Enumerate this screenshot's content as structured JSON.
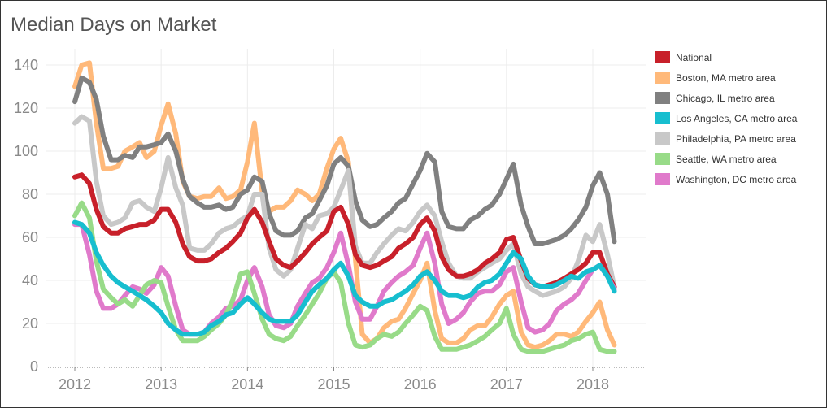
{
  "chart_data": {
    "type": "line",
    "title": "Median Days on Market",
    "xlabel": "",
    "ylabel": "",
    "xlim": [
      2011.85,
      2018.6
    ],
    "ylim": [
      0,
      145
    ],
    "x_ticks": [
      "2012",
      "2013",
      "2014",
      "2015",
      "2016",
      "2017",
      "2018"
    ],
    "y_ticks": [
      "0",
      "20",
      "40",
      "60",
      "80",
      "100",
      "120",
      "140"
    ],
    "legend_position": "right",
    "series": [
      {
        "name": "Boston, MA metro area",
        "color": "#FFB97A",
        "x": [
          2012,
          2012.08,
          2012.17,
          2012.25,
          2012.33,
          2012.42,
          2012.5,
          2012.58,
          2012.67,
          2012.75,
          2012.83,
          2012.92,
          2013,
          2013.08,
          2013.17,
          2013.25,
          2013.33,
          2013.42,
          2013.5,
          2013.58,
          2013.67,
          2013.75,
          2013.83,
          2013.92,
          2014,
          2014.08,
          2014.17,
          2014.25,
          2014.33,
          2014.42,
          2014.5,
          2014.58,
          2014.67,
          2014.75,
          2014.83,
          2014.92,
          2015,
          2015.08,
          2015.17,
          2015.25,
          2015.33,
          2015.42,
          2015.5,
          2015.58,
          2015.67,
          2015.75,
          2015.83,
          2015.92,
          2016,
          2016.08,
          2016.17,
          2016.25,
          2016.33,
          2016.42,
          2016.5,
          2016.58,
          2016.67,
          2016.75,
          2016.83,
          2016.92,
          2017,
          2017.08,
          2017.17,
          2017.25,
          2017.33,
          2017.42,
          2017.5,
          2017.58,
          2017.67,
          2017.75,
          2017.83,
          2017.92,
          2018,
          2018.08,
          2018.17,
          2018.25
        ],
        "values": [
          130,
          140,
          141,
          113,
          92,
          92,
          93,
          100,
          102,
          104,
          97,
          100,
          112,
          122,
          108,
          86,
          79,
          78,
          79,
          79,
          83,
          78,
          79,
          82,
          95,
          113,
          81,
          72,
          74,
          74,
          77,
          82,
          80,
          77,
          80,
          92,
          101,
          106,
          95,
          50,
          15,
          11,
          13,
          18,
          21,
          22,
          27,
          34,
          40,
          48,
          26,
          13,
          11,
          11,
          13,
          17,
          19,
          19,
          23,
          29,
          33,
          35,
          16,
          10,
          9,
          10,
          12,
          15,
          15,
          14,
          16,
          21,
          25,
          30,
          17,
          10
        ]
      },
      {
        "name": "Chicago, IL metro area",
        "color": "#808080",
        "x": [
          2012,
          2012.08,
          2012.17,
          2012.25,
          2012.33,
          2012.42,
          2012.5,
          2012.58,
          2012.67,
          2012.75,
          2012.83,
          2012.92,
          2013,
          2013.08,
          2013.17,
          2013.25,
          2013.33,
          2013.42,
          2013.5,
          2013.58,
          2013.67,
          2013.75,
          2013.83,
          2013.92,
          2014,
          2014.08,
          2014.17,
          2014.25,
          2014.33,
          2014.42,
          2014.5,
          2014.58,
          2014.67,
          2014.75,
          2014.83,
          2014.92,
          2015,
          2015.08,
          2015.17,
          2015.25,
          2015.33,
          2015.42,
          2015.5,
          2015.58,
          2015.67,
          2015.75,
          2015.83,
          2015.92,
          2016,
          2016.08,
          2016.17,
          2016.25,
          2016.33,
          2016.42,
          2016.5,
          2016.58,
          2016.67,
          2016.75,
          2016.83,
          2016.92,
          2017,
          2017.08,
          2017.17,
          2017.25,
          2017.33,
          2017.42,
          2017.5,
          2017.58,
          2017.67,
          2017.75,
          2017.83,
          2017.92,
          2018,
          2018.08,
          2018.17,
          2018.25
        ],
        "values": [
          123,
          134,
          132,
          124,
          107,
          96,
          96,
          98,
          97,
          102,
          102,
          103,
          104,
          108,
          100,
          87,
          79,
          76,
          74,
          74,
          75,
          73,
          74,
          80,
          82,
          88,
          86,
          71,
          63,
          61,
          61,
          63,
          69,
          71,
          77,
          84,
          94,
          97,
          93,
          77,
          68,
          65,
          66,
          69,
          72,
          76,
          78,
          85,
          91,
          99,
          95,
          72,
          65,
          64,
          64,
          68,
          70,
          73,
          75,
          80,
          87,
          94,
          75,
          65,
          57,
          57,
          58,
          59,
          61,
          64,
          68,
          74,
          84,
          90,
          80,
          58
        ]
      },
      {
        "name": "Philadelphia, PA metro area",
        "color": "#C8C8C8",
        "x": [
          2012,
          2012.08,
          2012.17,
          2012.25,
          2012.33,
          2012.42,
          2012.5,
          2012.58,
          2012.67,
          2012.75,
          2012.83,
          2012.92,
          2013,
          2013.08,
          2013.17,
          2013.25,
          2013.33,
          2013.42,
          2013.5,
          2013.58,
          2013.67,
          2013.75,
          2013.83,
          2013.92,
          2014,
          2014.08,
          2014.17,
          2014.25,
          2014.33,
          2014.42,
          2014.5,
          2014.58,
          2014.67,
          2014.75,
          2014.83,
          2014.92,
          2015,
          2015.08,
          2015.17,
          2015.25,
          2015.33,
          2015.42,
          2015.5,
          2015.58,
          2015.67,
          2015.75,
          2015.83,
          2015.92,
          2016,
          2016.08,
          2016.17,
          2016.25,
          2016.33,
          2016.42,
          2016.5,
          2016.58,
          2016.67,
          2016.75,
          2016.83,
          2016.92,
          2017,
          2017.08,
          2017.17,
          2017.25,
          2017.33,
          2017.42,
          2017.5,
          2017.58,
          2017.67,
          2017.75,
          2017.83,
          2017.92,
          2018,
          2018.08,
          2018.17,
          2018.25
        ],
        "values": [
          113,
          116,
          114,
          86,
          70,
          66,
          67,
          69,
          76,
          77,
          74,
          72,
          83,
          97,
          83,
          75,
          55,
          54,
          54,
          57,
          62,
          64,
          65,
          68,
          70,
          80,
          80,
          55,
          45,
          42,
          45,
          55,
          66,
          64,
          70,
          71,
          74,
          82,
          91,
          56,
          48,
          48,
          53,
          57,
          61,
          64,
          63,
          67,
          72,
          75,
          70,
          58,
          48,
          42,
          41,
          41,
          44,
          46,
          48,
          50,
          54,
          57,
          43,
          37,
          35,
          33,
          34,
          35,
          37,
          41,
          49,
          61,
          58,
          66,
          52,
          37
        ]
      },
      {
        "name": "National",
        "color": "#C8202A",
        "x": [
          2012,
          2012.08,
          2012.17,
          2012.25,
          2012.33,
          2012.42,
          2012.5,
          2012.58,
          2012.67,
          2012.75,
          2012.83,
          2012.92,
          2013,
          2013.08,
          2013.17,
          2013.25,
          2013.33,
          2013.42,
          2013.5,
          2013.58,
          2013.67,
          2013.75,
          2013.83,
          2013.92,
          2014,
          2014.08,
          2014.17,
          2014.25,
          2014.33,
          2014.42,
          2014.5,
          2014.58,
          2014.67,
          2014.75,
          2014.83,
          2014.92,
          2015,
          2015.08,
          2015.17,
          2015.25,
          2015.33,
          2015.42,
          2015.5,
          2015.58,
          2015.67,
          2015.75,
          2015.83,
          2015.92,
          2016,
          2016.08,
          2016.17,
          2016.25,
          2016.33,
          2016.42,
          2016.5,
          2016.58,
          2016.67,
          2016.75,
          2016.83,
          2016.92,
          2017,
          2017.08,
          2017.17,
          2017.25,
          2017.33,
          2017.42,
          2017.5,
          2017.58,
          2017.67,
          2017.75,
          2017.83,
          2017.92,
          2018,
          2018.08,
          2018.17,
          2018.25
        ],
        "values": [
          88,
          89,
          85,
          73,
          65,
          62,
          62,
          64,
          65,
          66,
          66,
          68,
          73,
          73,
          67,
          57,
          51,
          49,
          49,
          50,
          53,
          55,
          58,
          62,
          69,
          73,
          67,
          58,
          50,
          47,
          46,
          49,
          53,
          57,
          60,
          63,
          72,
          74,
          66,
          52,
          47,
          46,
          47,
          49,
          51,
          55,
          57,
          60,
          66,
          69,
          63,
          51,
          45,
          42,
          42,
          43,
          45,
          48,
          50,
          53,
          59,
          60,
          49,
          41,
          38,
          37,
          38,
          39,
          41,
          43,
          45,
          48,
          53,
          53,
          43,
          37
        ]
      },
      {
        "name": "Washington, DC metro area",
        "color": "#E07ACB",
        "x": [
          2012,
          2012.08,
          2012.17,
          2012.25,
          2012.33,
          2012.42,
          2012.5,
          2012.58,
          2012.67,
          2012.75,
          2012.83,
          2012.92,
          2013,
          2013.08,
          2013.17,
          2013.25,
          2013.33,
          2013.42,
          2013.5,
          2013.58,
          2013.67,
          2013.75,
          2013.83,
          2013.92,
          2014,
          2014.08,
          2014.17,
          2014.25,
          2014.33,
          2014.42,
          2014.5,
          2014.58,
          2014.67,
          2014.75,
          2014.83,
          2014.92,
          2015,
          2015.08,
          2015.17,
          2015.25,
          2015.33,
          2015.42,
          2015.5,
          2015.58,
          2015.67,
          2015.75,
          2015.83,
          2015.92,
          2016,
          2016.08,
          2016.17,
          2016.25,
          2016.33,
          2016.42,
          2016.5,
          2016.58,
          2016.67,
          2016.75,
          2016.83,
          2016.92,
          2017,
          2017.08,
          2017.17,
          2017.25,
          2017.33,
          2017.42,
          2017.5,
          2017.58,
          2017.67,
          2017.75,
          2017.83,
          2017.92,
          2018,
          2018.08,
          2018.17,
          2018.25
        ],
        "values": [
          66,
          66,
          52,
          35,
          27,
          27,
          29,
          33,
          37,
          36,
          34,
          38,
          46,
          42,
          28,
          17,
          15,
          15,
          16,
          20,
          23,
          27,
          28,
          31,
          40,
          46,
          37,
          24,
          19,
          18,
          20,
          28,
          34,
          39,
          41,
          46,
          53,
          62,
          47,
          30,
          22,
          22,
          28,
          35,
          39,
          42,
          44,
          47,
          55,
          62,
          48,
          29,
          20,
          22,
          25,
          30,
          34,
          35,
          35,
          38,
          44,
          46,
          30,
          18,
          16,
          17,
          20,
          26,
          29,
          31,
          34,
          40,
          45,
          47,
          42,
          36
        ]
      },
      {
        "name": "Seattle, WA metro area",
        "color": "#98DB88",
        "x": [
          2012,
          2012.08,
          2012.17,
          2012.25,
          2012.33,
          2012.42,
          2012.5,
          2012.58,
          2012.67,
          2012.75,
          2012.83,
          2012.92,
          2013,
          2013.08,
          2013.17,
          2013.25,
          2013.33,
          2013.42,
          2013.5,
          2013.58,
          2013.67,
          2013.75,
          2013.83,
          2013.92,
          2014,
          2014.08,
          2014.17,
          2014.25,
          2014.33,
          2014.42,
          2014.5,
          2014.58,
          2014.67,
          2014.75,
          2014.83,
          2014.92,
          2015,
          2015.08,
          2015.17,
          2015.25,
          2015.33,
          2015.42,
          2015.5,
          2015.58,
          2015.67,
          2015.75,
          2015.83,
          2015.92,
          2016,
          2016.08,
          2016.17,
          2016.25,
          2016.33,
          2016.42,
          2016.5,
          2016.58,
          2016.67,
          2016.75,
          2016.83,
          2016.92,
          2017,
          2017.08,
          2017.17,
          2017.25,
          2017.33,
          2017.42,
          2017.5,
          2017.58,
          2017.67,
          2017.75,
          2017.83,
          2017.92,
          2018,
          2018.08,
          2018.17,
          2018.25
        ],
        "values": [
          70,
          76,
          69,
          49,
          36,
          32,
          29,
          31,
          28,
          33,
          38,
          40,
          39,
          28,
          17,
          12,
          12,
          12,
          14,
          17,
          20,
          24,
          31,
          43,
          44,
          34,
          22,
          15,
          13,
          12,
          14,
          19,
          24,
          29,
          34,
          41,
          44,
          39,
          20,
          10,
          9,
          10,
          13,
          15,
          14,
          16,
          20,
          24,
          28,
          26,
          14,
          8,
          8,
          8,
          9,
          10,
          12,
          14,
          17,
          20,
          27,
          15,
          8,
          7,
          7,
          7,
          8,
          9,
          10,
          12,
          13,
          15,
          16,
          8,
          7,
          7
        ]
      },
      {
        "name": "Los Angeles, CA metro area",
        "color": "#17BECF",
        "x": [
          2012,
          2012.08,
          2012.17,
          2012.25,
          2012.33,
          2012.42,
          2012.5,
          2012.58,
          2012.67,
          2012.75,
          2012.83,
          2012.92,
          2013,
          2013.08,
          2013.17,
          2013.25,
          2013.33,
          2013.42,
          2013.5,
          2013.58,
          2013.67,
          2013.75,
          2013.83,
          2013.92,
          2014,
          2014.08,
          2014.17,
          2014.25,
          2014.33,
          2014.42,
          2014.5,
          2014.58,
          2014.67,
          2014.75,
          2014.83,
          2014.92,
          2015,
          2015.08,
          2015.17,
          2015.25,
          2015.33,
          2015.42,
          2015.5,
          2015.58,
          2015.67,
          2015.75,
          2015.83,
          2015.92,
          2016,
          2016.08,
          2016.17,
          2016.25,
          2016.33,
          2016.42,
          2016.5,
          2016.58,
          2016.67,
          2016.75,
          2016.83,
          2016.92,
          2017,
          2017.08,
          2017.17,
          2017.25,
          2017.33,
          2017.42,
          2017.5,
          2017.58,
          2017.67,
          2017.75,
          2017.83,
          2017.92,
          2018,
          2018.08,
          2018.17,
          2018.25
        ],
        "values": [
          67,
          66,
          62,
          53,
          47,
          42,
          39,
          37,
          35,
          33,
          31,
          28,
          25,
          20,
          17,
          15,
          15,
          15,
          16,
          19,
          21,
          24,
          25,
          29,
          32,
          29,
          25,
          22,
          21,
          21,
          21,
          24,
          30,
          35,
          38,
          41,
          45,
          48,
          42,
          33,
          30,
          28,
          28,
          30,
          31,
          33,
          35,
          38,
          42,
          44,
          40,
          35,
          33,
          33,
          32,
          33,
          37,
          39,
          40,
          43,
          48,
          53,
          50,
          42,
          38,
          37,
          37,
          38,
          40,
          42,
          41,
          44,
          45,
          47,
          42,
          35
        ]
      }
    ],
    "legend": [
      {
        "name": "National",
        "color": "#C8202A"
      },
      {
        "name": "Boston, MA metro area",
        "color": "#FFB97A"
      },
      {
        "name": "Chicago, IL metro area",
        "color": "#808080"
      },
      {
        "name": "Los Angeles, CA metro area",
        "color": "#17BECF"
      },
      {
        "name": "Philadelphia, PA metro area",
        "color": "#C8C8C8"
      },
      {
        "name": "Seattle, WA metro area",
        "color": "#98DB88"
      },
      {
        "name": "Washington, DC metro area",
        "color": "#E07ACB"
      }
    ]
  }
}
